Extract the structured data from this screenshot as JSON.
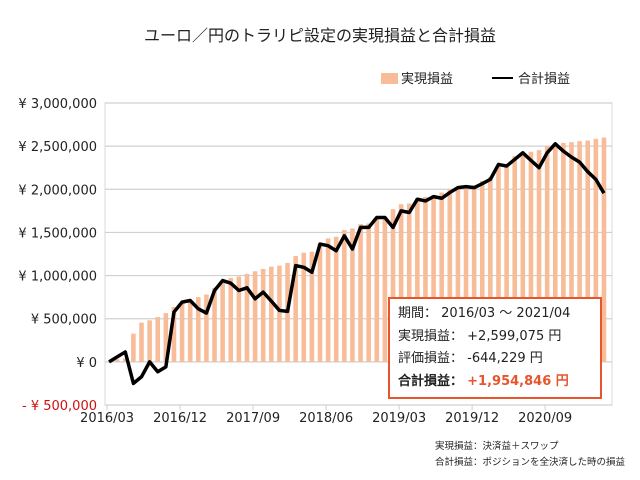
{
  "title": "ユーロ／円のトラリピ設定の実現損益と合計損益",
  "legend": {
    "bar": "実現損益",
    "line": "合計損益",
    "position": "top-right"
  },
  "summary": {
    "period_label": "期間：",
    "period_value": "2016/03 ～ 2021/04",
    "realized_label": "実現損益：",
    "realized_value": "+2,599,075 円",
    "unrealized_label": "評価損益：",
    "unrealized_value": "-644,229 円",
    "total_label": "合計損益：",
    "total_value": "+1,954,846 円"
  },
  "notes": [
    "実現損益：決済益＋スワップ",
    "合計損益：ポジションを全決済した時の損益"
  ],
  "colors": {
    "bar": "#f8bd98",
    "line": "#000000",
    "accent": "#e8542c",
    "negative_tick": "#d01010"
  },
  "chart_data": {
    "type": "bar+line",
    "title": "ユーロ／円のトラリピ設定の実現損益と合計損益",
    "ylim": [
      -500000,
      3000000
    ],
    "yticks": [
      {
        "v": 3000000,
        "t": "¥ 3,000,000"
      },
      {
        "v": 2500000,
        "t": "¥ 2,500,000"
      },
      {
        "v": 2000000,
        "t": "¥ 2,000,000"
      },
      {
        "v": 1500000,
        "t": "¥ 1,500,000"
      },
      {
        "v": 1000000,
        "t": "¥ 1,000,000"
      },
      {
        "v": 500000,
        "t": "¥ 500,000"
      },
      {
        "v": 0,
        "t": "¥ 0"
      },
      {
        "v": -500000,
        "t": "- ¥ 500,000"
      }
    ],
    "xtick_labels": [
      "2016/03",
      "2016/12",
      "2017/09",
      "2018/06",
      "2019/03",
      "2019/12",
      "2020/09"
    ],
    "grid": true,
    "start_month": "2016/03",
    "end_month": "2021/04",
    "series": [
      {
        "name": "実現損益",
        "type": "bar",
        "values": [
          0,
          30000,
          40000,
          327000,
          454000,
          481000,
          519000,
          565000,
          635000,
          673000,
          704000,
          750000,
          781000,
          858000,
          935000,
          973000,
          988000,
          1019000,
          1050000,
          1077000,
          1104000,
          1115000,
          1146000,
          1227000,
          1265000,
          1277000,
          1365000,
          1431000,
          1450000,
          1527000,
          1546000,
          1596000,
          1604000,
          1673000,
          1681000,
          1769000,
          1827000,
          1835000,
          1896000,
          1912000,
          1935000,
          1962000,
          2000000,
          2027000,
          2038000,
          2046000,
          2096000,
          2142000,
          2281000,
          2296000,
          2385000,
          2412000,
          2435000,
          2454000,
          2500000,
          2527000,
          2538000,
          2546000,
          2558000,
          2565000,
          2585000,
          2599075
        ]
      },
      {
        "name": "合計損益",
        "type": "line",
        "values": [
          0,
          58000,
          115000,
          -250000,
          -173000,
          0,
          -115000,
          -58000,
          577000,
          692000,
          711000,
          615000,
          565000,
          827000,
          942000,
          912000,
          827000,
          858000,
          731000,
          808000,
          704000,
          596000,
          585000,
          1115000,
          1096000,
          1038000,
          1365000,
          1346000,
          1288000,
          1461000,
          1308000,
          1558000,
          1558000,
          1673000,
          1673000,
          1558000,
          1750000,
          1731000,
          1885000,
          1865000,
          1915000,
          1896000,
          1962000,
          2019000,
          2031000,
          2019000,
          2065000,
          2115000,
          2288000,
          2269000,
          2346000,
          2423000,
          2335000,
          2250000,
          2423000,
          2527000,
          2442000,
          2373000,
          2315000,
          2204000,
          2115000,
          1954846
        ]
      }
    ]
  }
}
